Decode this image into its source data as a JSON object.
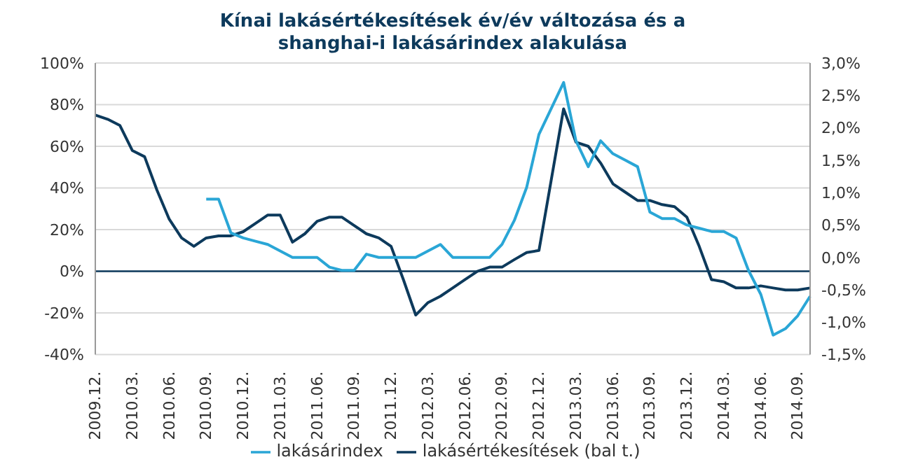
{
  "chart_data": {
    "type": "line",
    "title": "Kínai lakásértékesítések  év/év változása és a shanghai-i lakásárindex alakulása",
    "categories": [
      "2009.12.",
      null,
      null,
      "2010.03.",
      null,
      null,
      "2010.06.",
      null,
      null,
      "2010.09.",
      null,
      null,
      "2010.12.",
      null,
      null,
      "2011.03.",
      null,
      null,
      "2011.06.",
      null,
      null,
      "2011.09.",
      null,
      null,
      "2011.12.",
      null,
      null,
      "2012.03.",
      null,
      null,
      "2012.06.",
      null,
      null,
      "2012.09.",
      null,
      null,
      "2012.12.",
      null,
      null,
      "2013.03.",
      null,
      null,
      "2013.06.",
      null,
      null,
      "2013.09.",
      null,
      null,
      "2013.12.",
      null,
      null,
      "2014.03.",
      null,
      null,
      "2014.06.",
      null,
      null,
      "2014.09.",
      null
    ],
    "series": [
      {
        "name": "lakásértékesítések (bal t.)",
        "color": "#0d3a5c",
        "values": [
          75,
          73,
          70,
          58,
          55,
          39,
          25,
          16,
          12,
          16,
          17,
          17,
          19,
          23,
          27,
          27,
          14,
          18,
          24,
          26,
          26,
          22,
          18,
          16,
          12,
          -4,
          -21,
          -15,
          -12,
          -8,
          -4,
          0,
          2,
          2,
          5.6,
          9,
          10,
          44,
          78,
          62,
          60,
          52,
          42,
          38,
          34,
          34,
          32,
          31,
          26,
          12,
          -4,
          -5,
          -8,
          -8,
          -7,
          -8,
          -9,
          -9,
          -8
        ]
      },
      {
        "name": "lakásárindex",
        "color": "#2aa6d6",
        "axis": "y2",
        "values": [
          null,
          null,
          null,
          null,
          null,
          null,
          null,
          null,
          null,
          0.9,
          0.9,
          0.38,
          0.3,
          0.25,
          0.2,
          0.1,
          0,
          0,
          0,
          -0.15,
          -0.2,
          -0.2,
          0.05,
          0,
          0,
          0,
          0,
          0.1,
          0.2,
          0,
          0,
          0,
          0,
          0.2,
          0.57,
          1.08,
          1.9,
          2.3,
          2.7,
          1.8,
          1.4,
          1.8,
          1.6,
          1.5,
          1.4,
          0.7,
          0.6,
          0.6,
          0.5,
          0.45,
          0.4,
          0.4,
          0.3,
          -0.2,
          -0.57,
          -1.2,
          -1.1,
          -0.9,
          -0.6
        ]
      }
    ],
    "ylim": [
      -40,
      100
    ],
    "yticks": [
      {
        "value": -40,
        "label": "-40%"
      },
      {
        "value": -20,
        "label": "-20%"
      },
      {
        "value": 0,
        "label": "0%"
      },
      {
        "value": 20,
        "label": "20%"
      },
      {
        "value": 40,
        "label": "40%"
      },
      {
        "value": 60,
        "label": "60%"
      },
      {
        "value": 80,
        "label": "80%"
      },
      {
        "value": 100,
        "label": "100%"
      }
    ],
    "y2lim": [
      -1.5,
      3
    ],
    "y2ticks": [
      {
        "value": -1.5,
        "label": "-1,5%"
      },
      {
        "value": -1,
        "label": "-1,0%"
      },
      {
        "value": -0.5,
        "label": "-0,5%"
      },
      {
        "value": 0,
        "label": "0,0%"
      },
      {
        "value": 0.5,
        "label": "0,5%"
      },
      {
        "value": 1,
        "label": "1,0%"
      },
      {
        "value": 1.5,
        "label": "1,5%"
      },
      {
        "value": 2,
        "label": "2,0%"
      },
      {
        "value": 2.5,
        "label": "2,5%"
      },
      {
        "value": 3,
        "label": "3,0%"
      }
    ],
    "ref_lines": [
      {
        "axis": "y",
        "value": 0,
        "color": "#0d3a5c"
      }
    ],
    "grid": "y",
    "legend": "bottom",
    "marker": "none",
    "line_style": "solid"
  }
}
